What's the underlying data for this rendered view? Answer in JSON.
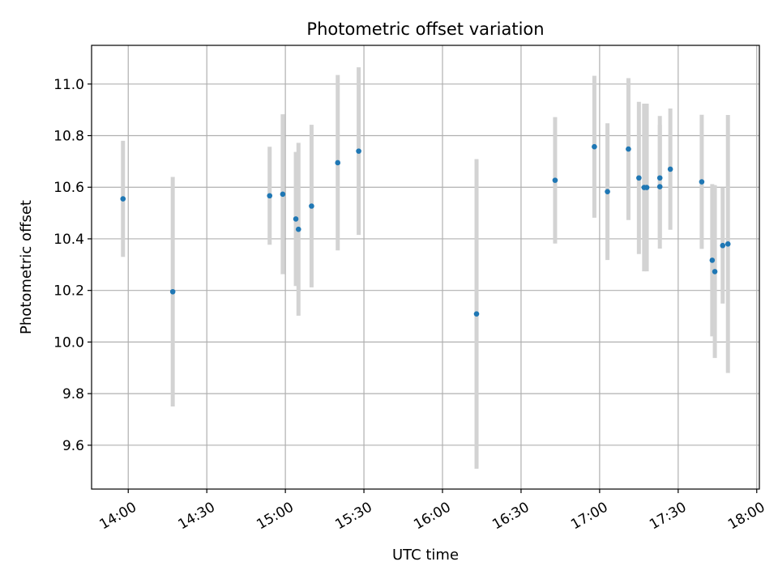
{
  "chart_data": {
    "type": "scatter",
    "title": "Photometric offset variation",
    "xlabel": "UTC time",
    "ylabel": "Photometric offset",
    "xlim": [
      "13:46",
      "18:01"
    ],
    "ylim": [
      9.43,
      11.15
    ],
    "grid": true,
    "legend": "none",
    "x_ticks": [
      "14:00",
      "14:30",
      "15:00",
      "15:30",
      "16:00",
      "16:30",
      "17:00",
      "17:30",
      "18:00"
    ],
    "y_ticks": [
      "9.6",
      "9.8",
      "10.0",
      "10.2",
      "10.4",
      "10.6",
      "10.8",
      "11.0"
    ],
    "colors": {
      "points": "#1f77b4",
      "errorbars": "#d3d3d3",
      "grid": "#b0b0b0"
    },
    "series": [
      {
        "points": [
          {
            "x": "13:58",
            "y": 10.555,
            "err": 0.225
          },
          {
            "x": "14:17",
            "y": 10.195,
            "err": 0.445
          },
          {
            "x": "14:54",
            "y": 10.567,
            "err": 0.19
          },
          {
            "x": "14:59",
            "y": 10.573,
            "err": 0.31
          },
          {
            "x": "15:04",
            "y": 10.477,
            "err": 0.26
          },
          {
            "x": "15:05",
            "y": 10.437,
            "err": 0.335
          },
          {
            "x": "15:10",
            "y": 10.527,
            "err": 0.315
          },
          {
            "x": "15:20",
            "y": 10.695,
            "err": 0.34
          },
          {
            "x": "15:28",
            "y": 10.74,
            "err": 0.325
          },
          {
            "x": "16:13",
            "y": 10.109,
            "err": 0.6
          },
          {
            "x": "16:43",
            "y": 10.627,
            "err": 0.245
          },
          {
            "x": "16:58",
            "y": 10.757,
            "err": 0.275
          },
          {
            "x": "17:03",
            "y": 10.583,
            "err": 0.265
          },
          {
            "x": "17:11",
            "y": 10.748,
            "err": 0.275
          },
          {
            "x": "17:15",
            "y": 10.636,
            "err": 0.295
          },
          {
            "x": "17:17",
            "y": 10.599,
            "err": 0.325
          },
          {
            "x": "17:18",
            "y": 10.599,
            "err": 0.325
          },
          {
            "x": "17:23",
            "y": 10.602,
            "err": 0.24
          },
          {
            "x": "17:23",
            "y": 10.636,
            "err": 0.24
          },
          {
            "x": "17:27",
            "y": 10.67,
            "err": 0.235
          },
          {
            "x": "17:39",
            "y": 10.621,
            "err": 0.26
          },
          {
            "x": "17:43",
            "y": 10.317,
            "err": 0.295
          },
          {
            "x": "17:44",
            "y": 10.273,
            "err": 0.335
          },
          {
            "x": "17:47",
            "y": 10.374,
            "err": 0.225
          },
          {
            "x": "17:49",
            "y": 10.38,
            "err": 0.5
          }
        ]
      }
    ]
  }
}
